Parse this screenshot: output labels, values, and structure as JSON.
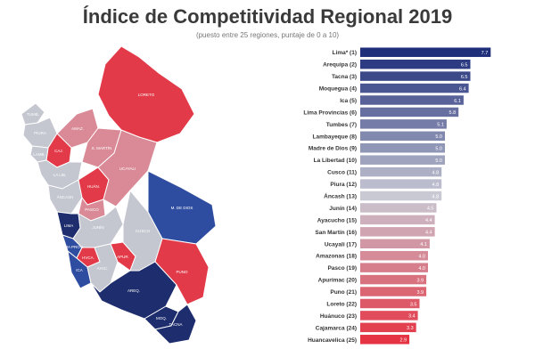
{
  "header": {
    "title": "Índice de Competitividad Regional 2019",
    "subtitle": "(puesto entre 25 regiones, puntaje de 0 a 10)"
  },
  "colors": {
    "top": "#1f2f7a",
    "mid": "#c9c9d4",
    "bottom": "#e53343",
    "map_red": "#e23a48",
    "map_pink": "#d98a96",
    "map_grey": "#c4c6d0",
    "map_blue": "#2f4da0",
    "map_dark": "#1e2d6d"
  },
  "chart_data": {
    "type": "bar",
    "orientation": "horizontal",
    "categories": [
      "Lima* (1)",
      "Arequipa (2)",
      "Tacna (3)",
      "Moquegua (4)",
      "Ica (5)",
      "Lima Provincias (6)",
      "Tumbes (7)",
      "Lambayeque (8)",
      "Madre de Dios (9)",
      "La Libertad (10)",
      "Cusco (11)",
      "Piura (12)",
      "Áncash (13)",
      "Junín (14)",
      "Ayacucho (15)",
      "San Martín (16)",
      "Ucayali (17)",
      "Amazonas (18)",
      "Pasco (19)",
      "Apurímac (20)",
      "Puno (21)",
      "Loreto (22)",
      "Huánuco (23)",
      "Cajamarca (24)",
      "Huancavelica (25)"
    ],
    "values": [
      7.7,
      6.5,
      6.5,
      6.4,
      6.1,
      5.8,
      5.1,
      5.0,
      5.0,
      5.0,
      4.8,
      4.8,
      4.8,
      4.5,
      4.4,
      4.4,
      4.1,
      4.0,
      4.0,
      3.9,
      3.9,
      3.5,
      3.4,
      3.3,
      2.9
    ],
    "value_labels": [
      "7.7",
      "6.5",
      "6.5",
      "6.4",
      "6.1",
      "5.8",
      "5.1",
      "5.0",
      "5.0",
      "5.0",
      "4.8",
      "4.8",
      "4.8",
      "4.5",
      "4.4",
      "4.4",
      "4.1",
      "4.0",
      "4.0",
      "3.9",
      "3.9",
      "3.5",
      "3.4",
      "3.3",
      "2.9"
    ],
    "xlim": [
      0,
      10
    ],
    "grid": false,
    "legend": "none"
  },
  "map": {
    "regions": [
      {
        "name": "tumbes",
        "class": "grey",
        "label": "TUMB."
      },
      {
        "name": "piura",
        "class": "grey",
        "label": "PIURA"
      },
      {
        "name": "lambayeque",
        "class": "grey",
        "label": "LAMB."
      },
      {
        "name": "la-libertad",
        "class": "grey",
        "label": "LA LIB."
      },
      {
        "name": "ancash",
        "class": "grey",
        "label": "ÁNCASH"
      },
      {
        "name": "lima",
        "class": "dark",
        "label": "LIMA"
      },
      {
        "name": "ica",
        "class": "blue",
        "label": "ICA"
      },
      {
        "name": "arequipa",
        "class": "dark",
        "label": "AREQ."
      },
      {
        "name": "moquegua",
        "class": "dark",
        "label": "MOQ."
      },
      {
        "name": "tacna",
        "class": "dark",
        "label": "TACNA"
      },
      {
        "name": "amazonas",
        "class": "pink",
        "label": "AMAZ."
      },
      {
        "name": "cajamarca",
        "class": "red",
        "label": "CAJ."
      },
      {
        "name": "loreto",
        "class": "red",
        "label": "LORETO"
      },
      {
        "name": "san-martin",
        "class": "pink",
        "label": "S. MARTÍN"
      },
      {
        "name": "huanuco",
        "class": "red",
        "label": "HUÁN."
      },
      {
        "name": "ucayali",
        "class": "pink",
        "label": "UCAYALI"
      },
      {
        "name": "pasco",
        "class": "pink",
        "label": "PASCO"
      },
      {
        "name": "junin",
        "class": "grey",
        "label": "JUNÍN"
      },
      {
        "name": "huancavelica",
        "class": "red",
        "label": "HVCA."
      },
      {
        "name": "ayacucho",
        "class": "grey",
        "label": "AYAC."
      },
      {
        "name": "apurimac",
        "class": "red",
        "label": "APUR."
      },
      {
        "name": "cusco",
        "class": "grey",
        "label": "CUSCO"
      },
      {
        "name": "madre-de-dios",
        "class": "blue",
        "label": "M. DE DIOS"
      },
      {
        "name": "puno",
        "class": "red",
        "label": "PUNO"
      },
      {
        "name": "lima-provincias",
        "class": "blue",
        "label": "LIMA PROV."
      }
    ]
  }
}
